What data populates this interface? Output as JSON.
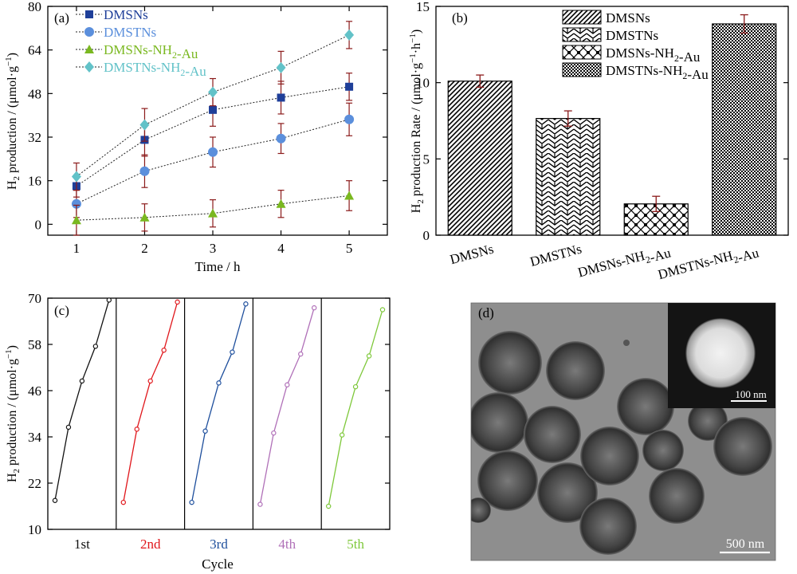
{
  "chart_data": [
    {
      "panel": "(a)",
      "type": "line",
      "ylabel": "H2 production / (μmol·g−1)",
      "xlabel": "Time / h",
      "x": [
        1,
        2,
        3,
        4,
        5
      ],
      "xticks": [
        "1",
        "2",
        "3",
        "4",
        "5"
      ],
      "ylim": [
        -4,
        80
      ],
      "yticks": [
        "0",
        "16",
        "32",
        "48",
        "64",
        "80"
      ],
      "legend_position": "top-left",
      "series": [
        {
          "name": "DMSNs",
          "color": "#1f3f99",
          "marker": "square",
          "values": [
            14,
            31,
            42,
            46.5,
            50.5
          ],
          "errors": [
            4,
            6,
            6,
            6,
            5
          ]
        },
        {
          "name": "DMSTNs",
          "color": "#5b8fdc",
          "marker": "circle",
          "values": [
            7.5,
            19.5,
            26.5,
            31.5,
            38.5
          ],
          "errors": [
            5,
            6,
            5.5,
            5.5,
            6
          ]
        },
        {
          "name": "DMSNs-NH2-Au",
          "color": "#7ab820",
          "marker": "triangle",
          "values": [
            1.5,
            2.5,
            4,
            7.5,
            10.5
          ],
          "errors": [
            5.5,
            5,
            5,
            5,
            5.5
          ]
        },
        {
          "name": "DMSTNs-NH2-Au",
          "color": "#62c2c8",
          "marker": "diamond",
          "values": [
            17.5,
            36.5,
            48.5,
            57.5,
            69.5
          ],
          "errors": [
            5,
            6,
            5,
            6,
            5
          ]
        }
      ]
    },
    {
      "panel": "(b)",
      "type": "bar",
      "ylabel": "H2 production Rate / (μmol·g−1·h−1)",
      "categories": [
        "DMSNs",
        "DMSTNs",
        "DMSNs-NH2-Au",
        "DMSTNs-NH2-Au"
      ],
      "values": [
        10.1,
        7.65,
        2.05,
        13.85
      ],
      "errors": [
        0.4,
        0.5,
        0.5,
        0.6
      ],
      "ylim": [
        0,
        15
      ],
      "yticks": [
        "0",
        "5",
        "10",
        "15"
      ],
      "legend_position": "top-right",
      "patterns": [
        "diagonal-hatch",
        "chevron-brick",
        "checker-cross",
        "fine-checker"
      ]
    },
    {
      "panel": "(c)",
      "type": "line",
      "ylabel": "H2 production / (μmol·g−1)",
      "xlabel": "Cycle",
      "ylim": [
        10,
        70
      ],
      "yticks": [
        "10",
        "22",
        "34",
        "46",
        "58",
        "70"
      ],
      "cycles": [
        {
          "label": "1st",
          "color": "#111111",
          "values": [
            17.5,
            36.5,
            48.5,
            57.5,
            69.5
          ]
        },
        {
          "label": "2nd",
          "color": "#e0161b",
          "values": [
            17,
            36,
            48.5,
            56.5,
            69
          ]
        },
        {
          "label": "3rd",
          "color": "#1d4e9c",
          "values": [
            17,
            35.5,
            48,
            56,
            68.5
          ]
        },
        {
          "label": "4th",
          "color": "#b070b8",
          "values": [
            16.5,
            35,
            47.5,
            55.5,
            67.5
          ]
        },
        {
          "label": "5th",
          "color": "#7ec83a",
          "values": [
            16,
            34.5,
            47,
            55,
            67
          ]
        }
      ]
    }
  ],
  "panel_d": {
    "label": "(d)",
    "scale_main": "500 nm",
    "scale_inset": "100 nm"
  }
}
